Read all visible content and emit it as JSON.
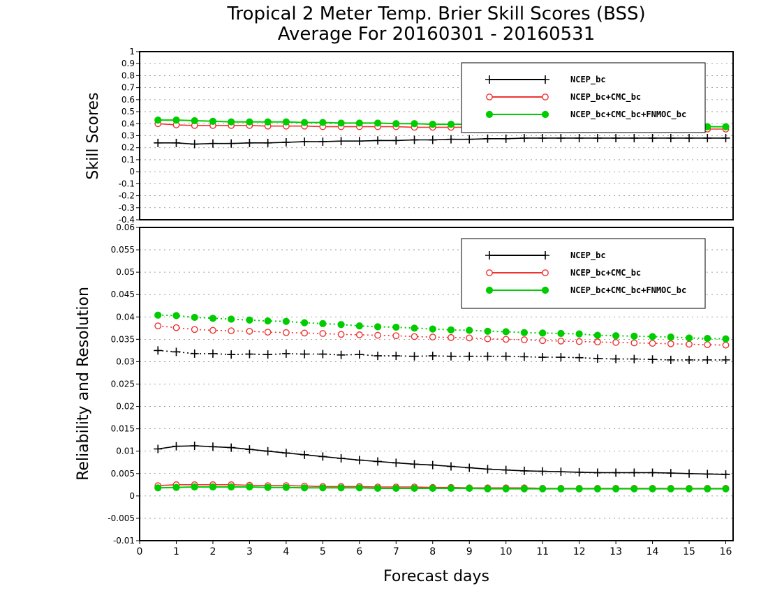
{
  "title_line1": "Tropical 2 Meter Temp. Brier Skill Scores (BSS)",
  "title_line2": "Average For 20160301 - 20160531",
  "colors": {
    "ncep": "#000000",
    "cmc": "#ee3333",
    "fnmoc": "#00cc00"
  },
  "chart_data": [
    {
      "type": "line",
      "panel": "top",
      "ylabel": "Skill Scores",
      "xlim": [
        0,
        16.2
      ],
      "ylim": [
        -0.4,
        1
      ],
      "yticks": [
        "1",
        "0.9",
        "0.8",
        "0.7",
        "0.6",
        "0.5",
        "0.4",
        "0.3",
        "0.2",
        "0.1",
        "0",
        "-0.1",
        "-0.2",
        "-0.3",
        "-0.4"
      ],
      "legend": [
        "NCEP_bc",
        "NCEP_bc+CMC_bc",
        "NCEP_bc+CMC_bc+FNMOC_bc"
      ],
      "legend_position": "top-right",
      "x": [
        0.5,
        1,
        1.5,
        2,
        2.5,
        3,
        3.5,
        4,
        4.5,
        5,
        5.5,
        6,
        6.5,
        7,
        7.5,
        8,
        8.5,
        9,
        9.5,
        10,
        10.5,
        11,
        11.5,
        12,
        12.5,
        13,
        13.5,
        14,
        14.5,
        15,
        15.5,
        16
      ],
      "series": [
        {
          "name": "NCEP_bc",
          "style": "plus-solid",
          "color_key": "ncep",
          "values": [
            0.24,
            0.24,
            0.23,
            0.235,
            0.235,
            0.24,
            0.24,
            0.245,
            0.25,
            0.25,
            0.255,
            0.255,
            0.26,
            0.26,
            0.265,
            0.265,
            0.27,
            0.27,
            0.275,
            0.275,
            0.28,
            0.28,
            0.28,
            0.28,
            0.28,
            0.28,
            0.28,
            0.28,
            0.28,
            0.28,
            0.28,
            0.28
          ]
        },
        {
          "name": "NCEP_bc+CMC_bc",
          "style": "circle-solid",
          "color_key": "cmc",
          "values": [
            0.4,
            0.39,
            0.385,
            0.385,
            0.385,
            0.385,
            0.38,
            0.38,
            0.38,
            0.375,
            0.375,
            0.375,
            0.375,
            0.375,
            0.37,
            0.37,
            0.37,
            0.37,
            0.37,
            0.37,
            0.365,
            0.365,
            0.365,
            0.365,
            0.365,
            0.365,
            0.365,
            0.36,
            0.36,
            0.36,
            0.355,
            0.355
          ]
        },
        {
          "name": "NCEP_bc+CMC_bc+FNMOC_bc",
          "style": "dot-solid",
          "color_key": "fnmoc",
          "values": [
            0.43,
            0.43,
            0.425,
            0.42,
            0.415,
            0.415,
            0.415,
            0.415,
            0.41,
            0.41,
            0.405,
            0.405,
            0.405,
            0.4,
            0.4,
            0.395,
            0.395,
            0.395,
            0.39,
            0.39,
            0.39,
            0.385,
            0.385,
            0.385,
            0.385,
            0.38,
            0.38,
            0.38,
            0.38,
            0.375,
            0.375,
            0.375
          ]
        }
      ]
    },
    {
      "type": "line",
      "panel": "bottom",
      "ylabel": "Reliability and Resolution",
      "xlabel": "Forecast days",
      "xlim": [
        0,
        16.2
      ],
      "xticks": [
        "0",
        "1",
        "2",
        "3",
        "4",
        "5",
        "6",
        "7",
        "8",
        "9",
        "10",
        "11",
        "12",
        "13",
        "14",
        "15",
        "16"
      ],
      "ylim": [
        -0.01,
        0.06
      ],
      "yticks": [
        "0.06",
        "0.055",
        "0.05",
        "0.045",
        "0.04",
        "0.035",
        "0.03",
        "0.025",
        "0.02",
        "0.015",
        "0.01",
        "0.005",
        "0",
        "-0.005",
        "-0.01"
      ],
      "legend": [
        "NCEP_bc",
        "NCEP_bc+CMC_bc",
        "NCEP_bc+CMC_bc+FNMOC_bc"
      ],
      "legend_position": "top-right",
      "x": [
        0.5,
        1,
        1.5,
        2,
        2.5,
        3,
        3.5,
        4,
        4.5,
        5,
        5.5,
        6,
        6.5,
        7,
        7.5,
        8,
        8.5,
        9,
        9.5,
        10,
        10.5,
        11,
        11.5,
        12,
        12.5,
        13,
        13.5,
        14,
        14.5,
        15,
        15.5,
        16
      ],
      "series": [
        {
          "name": "NCEP_bc",
          "measure": "resolution",
          "style": "plus-dotted",
          "color_key": "ncep",
          "values": [
            0.0325,
            0.0322,
            0.0318,
            0.0318,
            0.0316,
            0.0317,
            0.0316,
            0.0318,
            0.0317,
            0.0317,
            0.0315,
            0.0316,
            0.0313,
            0.0313,
            0.0312,
            0.0313,
            0.0312,
            0.0312,
            0.0312,
            0.0312,
            0.0311,
            0.031,
            0.031,
            0.0309,
            0.0307,
            0.0306,
            0.0306,
            0.0305,
            0.0304,
            0.0304,
            0.0304,
            0.0304
          ]
        },
        {
          "name": "NCEP_bc+CMC_bc",
          "measure": "resolution",
          "style": "circle-dotted",
          "color_key": "cmc",
          "values": [
            0.038,
            0.0376,
            0.0372,
            0.037,
            0.0369,
            0.0368,
            0.0366,
            0.0365,
            0.0364,
            0.0363,
            0.0361,
            0.036,
            0.0359,
            0.0358,
            0.0356,
            0.0355,
            0.0354,
            0.0353,
            0.0351,
            0.035,
            0.0349,
            0.0347,
            0.0346,
            0.0345,
            0.0344,
            0.0343,
            0.0342,
            0.0341,
            0.034,
            0.0339,
            0.0338,
            0.0337
          ]
        },
        {
          "name": "NCEP_bc+CMC_bc+FNMOC_bc",
          "measure": "resolution",
          "style": "dot-dotted",
          "color_key": "fnmoc",
          "values": [
            0.0404,
            0.0403,
            0.0399,
            0.0397,
            0.0395,
            0.0393,
            0.0391,
            0.039,
            0.0387,
            0.0385,
            0.0383,
            0.038,
            0.0378,
            0.0377,
            0.0375,
            0.0373,
            0.0371,
            0.037,
            0.0368,
            0.0367,
            0.0365,
            0.0364,
            0.0363,
            0.0362,
            0.0359,
            0.0358,
            0.0357,
            0.0356,
            0.0355,
            0.0353,
            0.0352,
            0.0351
          ]
        },
        {
          "name": "NCEP_bc",
          "measure": "reliability",
          "style": "plus-solid",
          "color_key": "ncep",
          "values": [
            0.0105,
            0.0111,
            0.0112,
            0.011,
            0.0108,
            0.0104,
            0.01,
            0.0096,
            0.0092,
            0.0088,
            0.0084,
            0.008,
            0.0077,
            0.0074,
            0.0071,
            0.0069,
            0.0066,
            0.0063,
            0.006,
            0.0058,
            0.0056,
            0.0055,
            0.0054,
            0.0053,
            0.0052,
            0.0052,
            0.0052,
            0.0052,
            0.0051,
            0.005,
            0.0049,
            0.0048
          ]
        },
        {
          "name": "NCEP_bc+CMC_bc",
          "measure": "reliability",
          "style": "circle-solid",
          "color_key": "cmc",
          "values": [
            0.0023,
            0.0025,
            0.0025,
            0.0025,
            0.0025,
            0.0024,
            0.0023,
            0.0023,
            0.0022,
            0.0021,
            0.0021,
            0.0021,
            0.002,
            0.002,
            0.002,
            0.0019,
            0.0019,
            0.0018,
            0.0018,
            0.0018,
            0.0018,
            0.0017,
            0.0017,
            0.0017,
            0.0017,
            0.0017,
            0.0017,
            0.0017,
            0.0017,
            0.0017,
            0.0017,
            0.0017
          ]
        },
        {
          "name": "NCEP_bc+CMC_bc+FNMOC_bc",
          "measure": "reliability",
          "style": "dot-solid",
          "color_key": "fnmoc",
          "values": [
            0.0018,
            0.0019,
            0.002,
            0.002,
            0.002,
            0.002,
            0.0019,
            0.0019,
            0.0018,
            0.0018,
            0.0018,
            0.0018,
            0.0017,
            0.0017,
            0.0017,
            0.0017,
            0.0017,
            0.0017,
            0.0016,
            0.0016,
            0.0016,
            0.0016,
            0.0016,
            0.0016,
            0.0016,
            0.0016,
            0.0016,
            0.0016,
            0.0016,
            0.0016,
            0.0016,
            0.0016
          ]
        }
      ]
    }
  ]
}
